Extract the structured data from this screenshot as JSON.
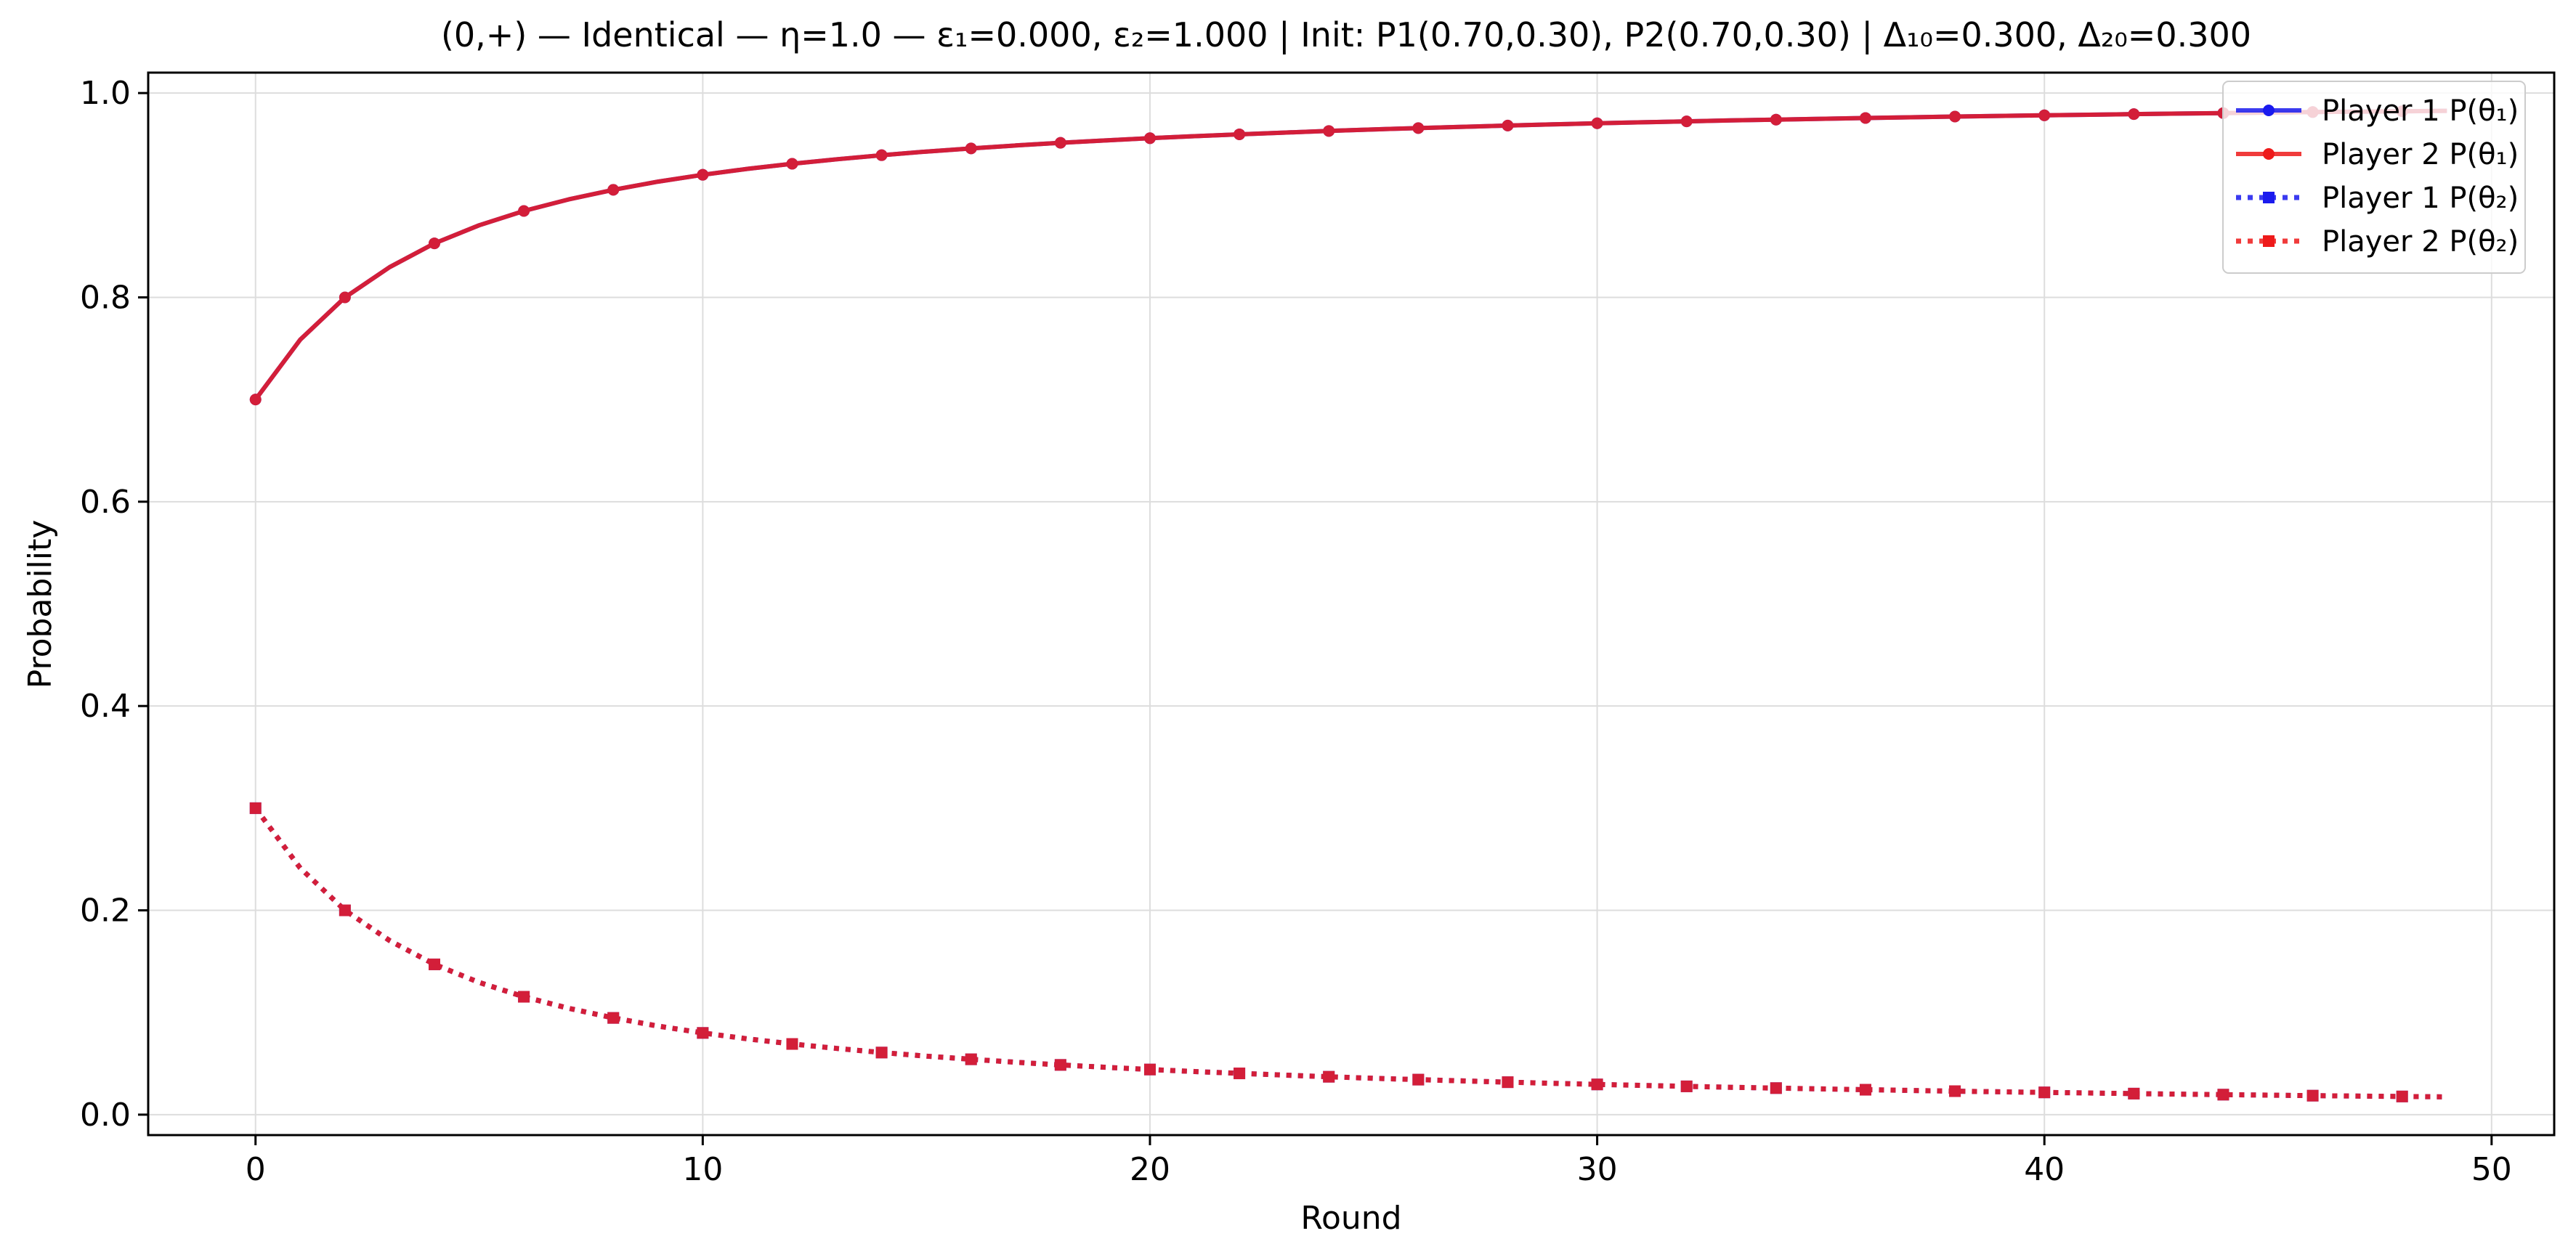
{
  "chart_data": {
    "type": "line",
    "title": "(0,+) — Identical — η=1.0 — ε₁=0.000, ε₂=1.000 | Init: P1(0.70,0.30), P2(0.70,0.30) | Δ₁₀=0.300, Δ₂₀=0.300",
    "xlabel": "Round",
    "ylabel": "Probability",
    "xlim": [
      -2.4,
      51.4
    ],
    "ylim": [
      -0.02,
      1.02
    ],
    "xticks": [
      0,
      10,
      20,
      30,
      40,
      50
    ],
    "yticks": [
      0.0,
      0.2,
      0.4,
      0.6,
      0.8,
      1.0
    ],
    "xtick_labels": [
      "0",
      "10",
      "20",
      "30",
      "40",
      "50"
    ],
    "ytick_labels": [
      "0.0",
      "0.2",
      "0.4",
      "0.6",
      "0.8",
      "1.0"
    ],
    "grid": true,
    "legend_position": "top-right",
    "x": [
      0,
      1,
      2,
      3,
      4,
      5,
      6,
      7,
      8,
      9,
      10,
      11,
      12,
      13,
      14,
      15,
      16,
      17,
      18,
      19,
      20,
      21,
      22,
      23,
      24,
      25,
      26,
      27,
      28,
      29,
      30,
      31,
      32,
      33,
      34,
      35,
      36,
      37,
      38,
      39,
      40,
      41,
      42,
      43,
      44,
      45,
      46,
      47,
      48,
      49
    ],
    "series": [
      {
        "name": "Player 1 P(θ₁)",
        "color": "#1a1aee",
        "line": "solid",
        "marker": "circle",
        "values": [
          0.7,
          0.7586,
          0.8,
          0.8296,
          0.8529,
          0.8706,
          0.8846,
          0.8959,
          0.9053,
          0.9133,
          0.92,
          0.9258,
          0.9308,
          0.9352,
          0.9392,
          0.9427,
          0.9458,
          0.9487,
          0.9513,
          0.9536,
          0.9558,
          0.9578,
          0.9596,
          0.9613,
          0.9629,
          0.9644,
          0.9657,
          0.967,
          0.9682,
          0.9693,
          0.9704,
          0.9714,
          0.9723,
          0.9732,
          0.974,
          0.9748,
          0.9756,
          0.9763,
          0.977,
          0.9776,
          0.9782,
          0.9788,
          0.9794,
          0.9799,
          0.9804,
          0.9809,
          0.9814,
          0.9818,
          0.9822,
          0.9826
        ]
      },
      {
        "name": "Player 2 P(θ₁)",
        "color": "#ee1a1a",
        "line": "solid",
        "marker": "circle",
        "values": [
          0.7,
          0.7586,
          0.8,
          0.8296,
          0.8529,
          0.8706,
          0.8846,
          0.8959,
          0.9053,
          0.9133,
          0.92,
          0.9258,
          0.9308,
          0.9352,
          0.9392,
          0.9427,
          0.9458,
          0.9487,
          0.9513,
          0.9536,
          0.9558,
          0.9578,
          0.9596,
          0.9613,
          0.9629,
          0.9644,
          0.9657,
          0.967,
          0.9682,
          0.9693,
          0.9704,
          0.9714,
          0.9723,
          0.9732,
          0.974,
          0.9748,
          0.9756,
          0.9763,
          0.977,
          0.9776,
          0.9782,
          0.9788,
          0.9794,
          0.9799,
          0.9804,
          0.9809,
          0.9814,
          0.9818,
          0.9822,
          0.9826
        ]
      },
      {
        "name": "Player 1 P(θ₂)",
        "color": "#1a1aee",
        "line": "dotted",
        "marker": "square",
        "values": [
          0.3,
          0.2414,
          0.2,
          0.1704,
          0.1471,
          0.1294,
          0.1154,
          0.1041,
          0.0947,
          0.0867,
          0.08,
          0.0742,
          0.0692,
          0.0648,
          0.0608,
          0.0573,
          0.0542,
          0.0513,
          0.0487,
          0.0464,
          0.0442,
          0.0422,
          0.0404,
          0.0387,
          0.0371,
          0.0356,
          0.0343,
          0.033,
          0.0318,
          0.0307,
          0.0296,
          0.0286,
          0.0277,
          0.0268,
          0.026,
          0.0252,
          0.0244,
          0.0237,
          0.023,
          0.0224,
          0.0218,
          0.0212,
          0.0206,
          0.0201,
          0.0196,
          0.0191,
          0.0186,
          0.0182,
          0.0178,
          0.0174
        ]
      },
      {
        "name": "Player 2 P(θ₂)",
        "color": "#ee1a1a",
        "line": "dotted",
        "marker": "square",
        "values": [
          0.3,
          0.2414,
          0.2,
          0.1704,
          0.1471,
          0.1294,
          0.1154,
          0.1041,
          0.0947,
          0.0867,
          0.08,
          0.0742,
          0.0692,
          0.0648,
          0.0608,
          0.0573,
          0.0542,
          0.0513,
          0.0487,
          0.0464,
          0.0442,
          0.0422,
          0.0404,
          0.0387,
          0.0371,
          0.0356,
          0.0343,
          0.033,
          0.0318,
          0.0307,
          0.0296,
          0.0286,
          0.0277,
          0.0268,
          0.026,
          0.0252,
          0.0244,
          0.0237,
          0.023,
          0.0224,
          0.0218,
          0.0212,
          0.0206,
          0.0201,
          0.0196,
          0.0191,
          0.0186,
          0.0182,
          0.0178,
          0.0174
        ]
      }
    ]
  }
}
